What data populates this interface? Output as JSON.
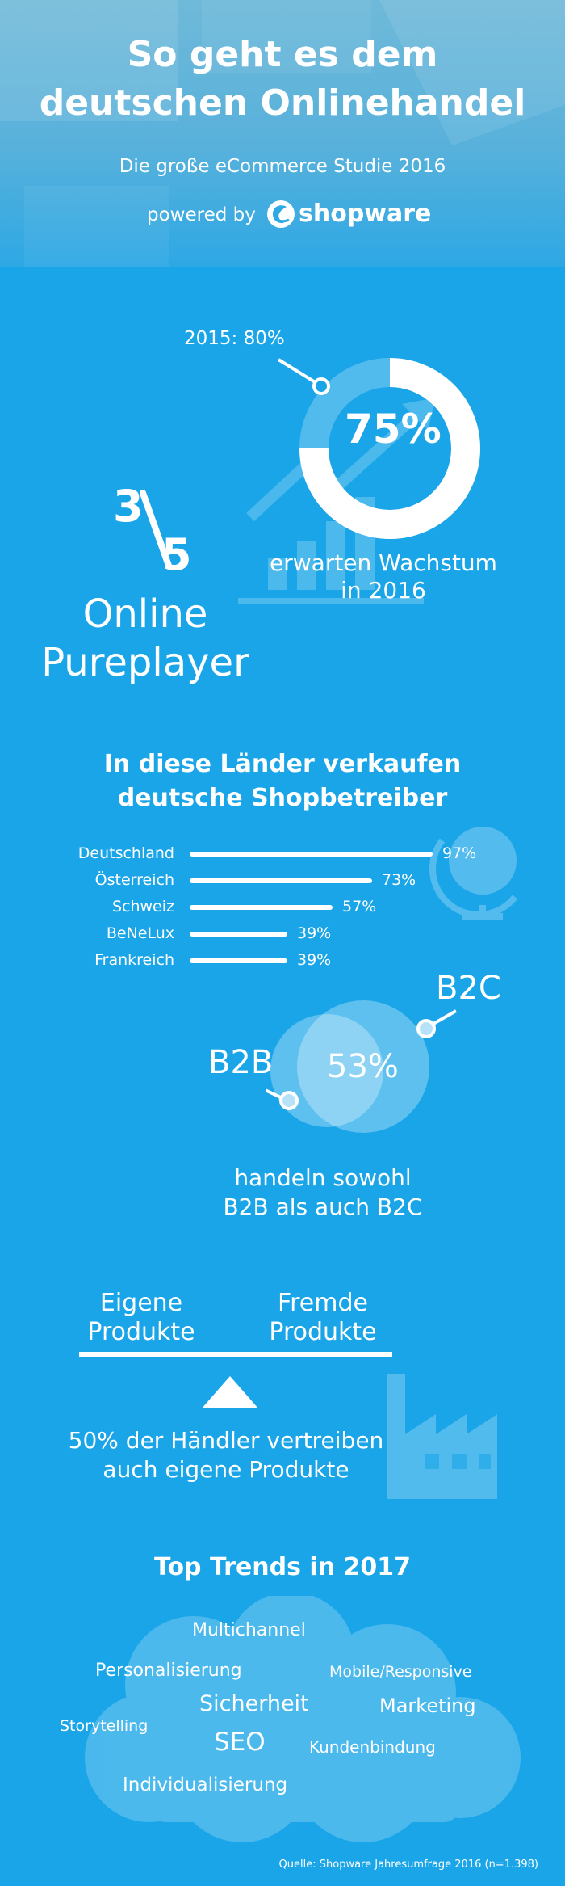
{
  "header": {
    "title_line1": "So geht es dem",
    "title_line2": "deutschen Onlinehandel",
    "subtitle": "Die große eCommerce Studie 2016",
    "powered_by": "powered by",
    "brand": "shopware"
  },
  "growth": {
    "previous_label": "2015: 80%",
    "value_label": "75%",
    "value_fraction": 0.75,
    "caption_line1": "erwarten Wachstum",
    "caption_line2": "in 2016"
  },
  "pureplayer": {
    "numerator": "3",
    "denominator": "5",
    "label_line1": "Online",
    "label_line2": "Pureplayer"
  },
  "countries": {
    "title_line1": "In diese Länder verkaufen",
    "title_line2": "deutsche Shopbetreiber",
    "items": [
      {
        "name": "Deutschland",
        "value": 97,
        "label": "97%"
      },
      {
        "name": "Österreich",
        "value": 73,
        "label": "73%"
      },
      {
        "name": "Schweiz",
        "value": 57,
        "label": "57%"
      },
      {
        "name": "BeNeLux",
        "value": 39,
        "label": "39%"
      },
      {
        "name": "Frankreich",
        "value": 39,
        "label": "39%"
      }
    ]
  },
  "b2b_b2c": {
    "b2b": "B2B",
    "b2c": "B2C",
    "value_label": "53%",
    "caption_line1": "handeln sowohl",
    "caption_line2": "B2B als auch B2C"
  },
  "products": {
    "own_line1": "Eigene",
    "own_line2": "Produkte",
    "third_line1": "Fremde",
    "third_line2": "Produkte",
    "caption_line1": "50% der Händler vertreiben",
    "caption_line2": "auch eigene Produkte"
  },
  "trends": {
    "title": "Top Trends in 2017",
    "items": [
      "Multichannel",
      "Personalisierung",
      "Mobile/Responsive",
      "Storytelling",
      "Sicherheit",
      "Marketing",
      "SEO",
      "Kundenbindung",
      "Individualisierung"
    ]
  },
  "footer": {
    "source": "Quelle: Shopware Jahresumfrage 2016 (n=1.398)"
  }
}
